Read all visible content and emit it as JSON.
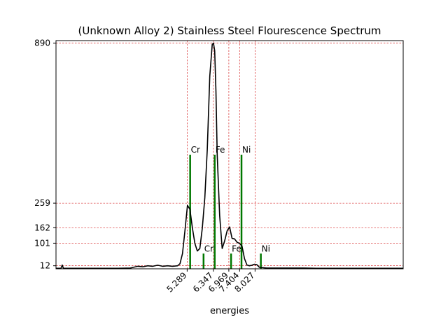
{
  "chart_data": {
    "type": "line",
    "title": "(Unknown Alloy 2) Stainless Steel Flourescence Spectrum",
    "xlabel": "energies",
    "ylabel": "",
    "xlim": [
      0.0,
      14.0
    ],
    "ylim": [
      0,
      900
    ],
    "grid": "dashed reference lines at labeled ticks",
    "xticks": [
      5.289,
      6.347,
      6.969,
      7.404,
      8.027
    ],
    "xtick_labels": [
      "5.289",
      "6.347",
      "6.969",
      "7.404",
      "8.027"
    ],
    "yticks": [
      12,
      101,
      162,
      259,
      890
    ],
    "ytick_labels": [
      "12",
      "101",
      "162",
      "259",
      "890"
    ],
    "series": [
      {
        "color": "#000000",
        "x": [
          0.0,
          0.2,
          0.25,
          0.3,
          0.4,
          0.6,
          1.0,
          1.5,
          2.0,
          2.5,
          3.0,
          3.3,
          3.5,
          3.7,
          3.9,
          4.1,
          4.3,
          4.5,
          4.7,
          4.9,
          5.0,
          5.1,
          5.2,
          5.3,
          5.4,
          5.5,
          5.6,
          5.7,
          5.8,
          5.9,
          6.0,
          6.1,
          6.2,
          6.3,
          6.35,
          6.4,
          6.45,
          6.5,
          6.6,
          6.7,
          6.8,
          6.9,
          7.0,
          7.1,
          7.2,
          7.3,
          7.4,
          7.5,
          7.6,
          7.7,
          7.8,
          7.9,
          8.0,
          8.1,
          8.2,
          8.5,
          9.0,
          9.5,
          10.0,
          10.5,
          11.0,
          11.5,
          12.0,
          12.5,
          13.0,
          13.5,
          14.0
        ],
        "y": [
          2,
          2,
          15,
          2,
          2,
          2,
          2,
          2,
          2,
          2,
          3,
          10,
          8,
          12,
          10,
          14,
          10,
          12,
          10,
          12,
          20,
          60,
          150,
          250,
          235,
          160,
          100,
          70,
          80,
          160,
          280,
          470,
          760,
          885,
          890,
          860,
          700,
          450,
          210,
          80,
          110,
          150,
          165,
          120,
          118,
          105,
          100,
          90,
          40,
          15,
          12,
          14,
          18,
          16,
          6,
          3,
          3,
          3,
          3,
          2,
          2,
          2,
          2,
          2,
          2,
          2,
          2
        ]
      }
    ],
    "peak_markers": [
      {
        "label": "Cr",
        "x": 5.41,
        "height": 450
      },
      {
        "label": "Cr",
        "x": 5.95,
        "height": 60
      },
      {
        "label": "Fe",
        "x": 6.4,
        "height": 450
      },
      {
        "label": "Fe",
        "x": 7.06,
        "height": 60
      },
      {
        "label": "Ni",
        "x": 7.48,
        "height": 450
      },
      {
        "label": "Ni",
        "x": 8.26,
        "height": 60
      }
    ],
    "reference_lines": {
      "x": [
        5.289,
        6.347,
        6.969,
        7.404,
        8.027
      ],
      "y": [
        12,
        101,
        162,
        259,
        890
      ]
    },
    "colors": {
      "spectrum": "#000000",
      "markers": "#007700",
      "reference": "#d62728",
      "frame": "#000000"
    }
  }
}
